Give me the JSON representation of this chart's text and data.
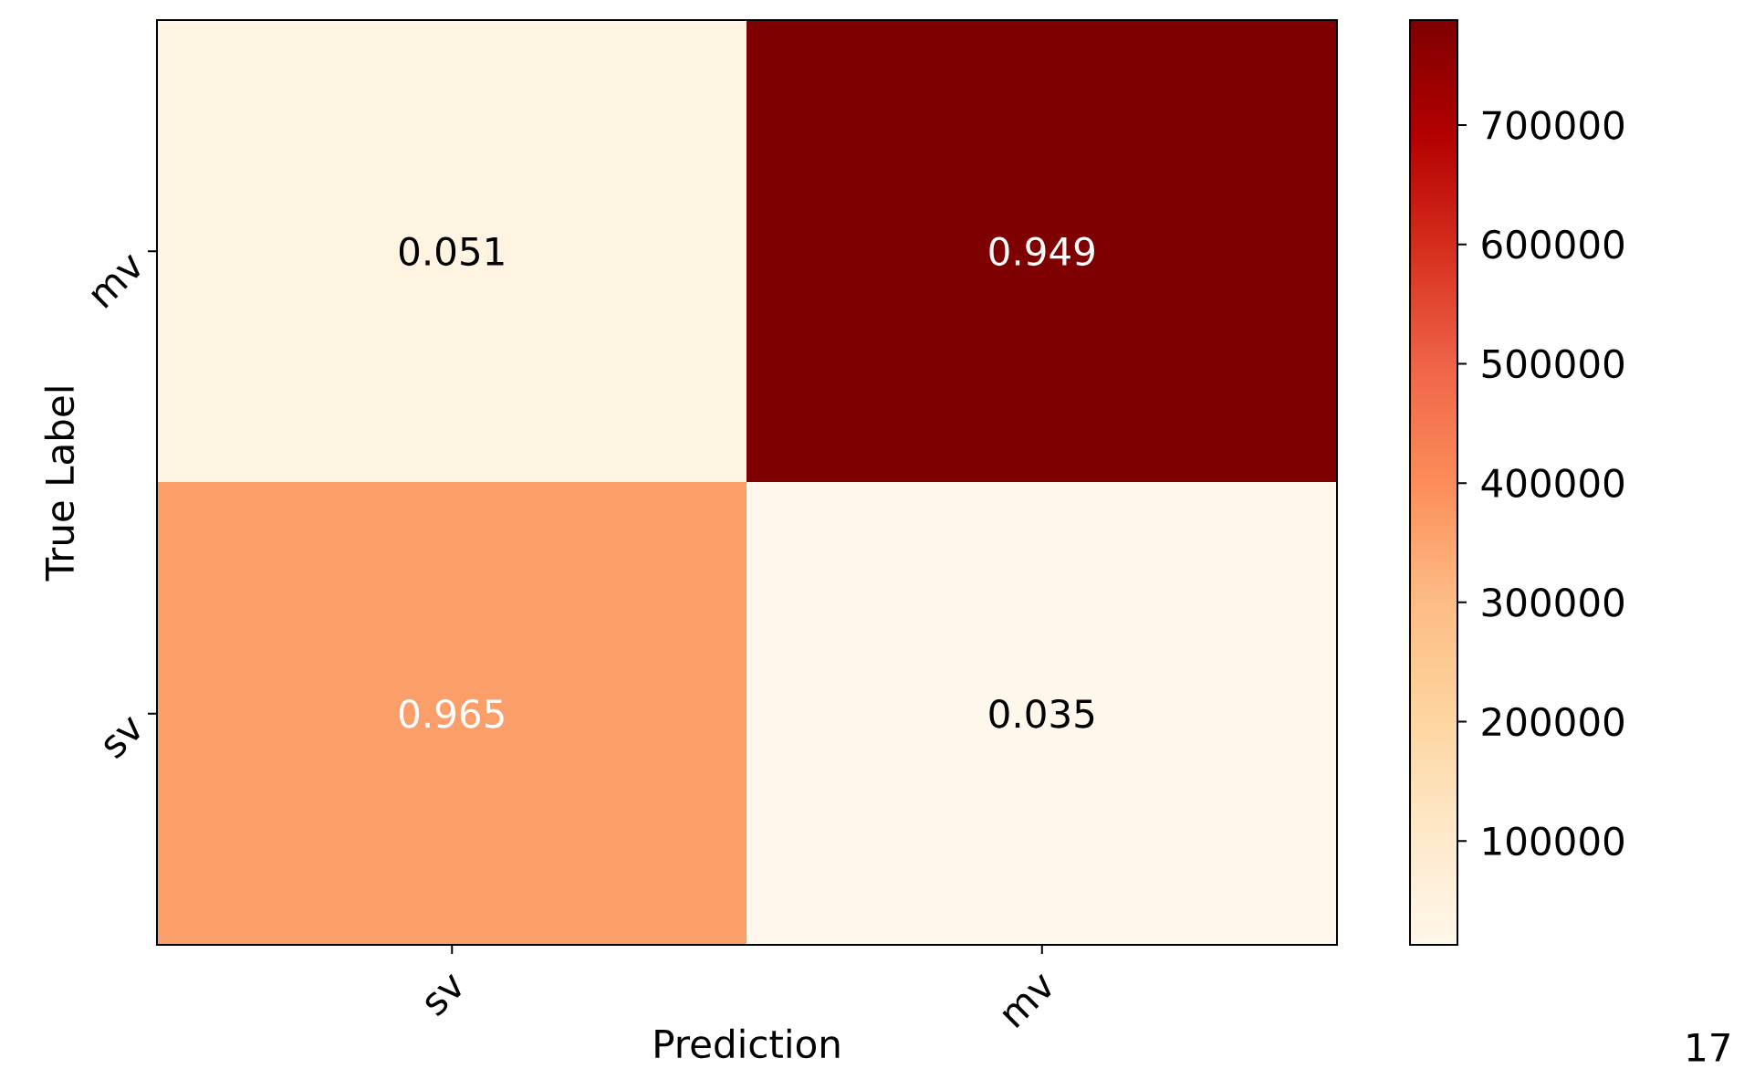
{
  "chart_data": {
    "type": "heatmap",
    "xlabel": "Prediction",
    "ylabel": "True Label",
    "categories": [
      "sv",
      "mv"
    ],
    "y_categories": [
      "mv",
      "sv"
    ],
    "cells": [
      [
        42000,
        788000
      ],
      [
        365000,
        13000
      ]
    ],
    "clim": [
      13000,
      788000
    ],
    "cticks": [
      100000,
      200000,
      300000,
      400000,
      500000,
      600000,
      700000
    ],
    "annotations": [
      "0.051",
      "0.949",
      "0.965",
      "0.035",
      "17"
    ]
  }
}
